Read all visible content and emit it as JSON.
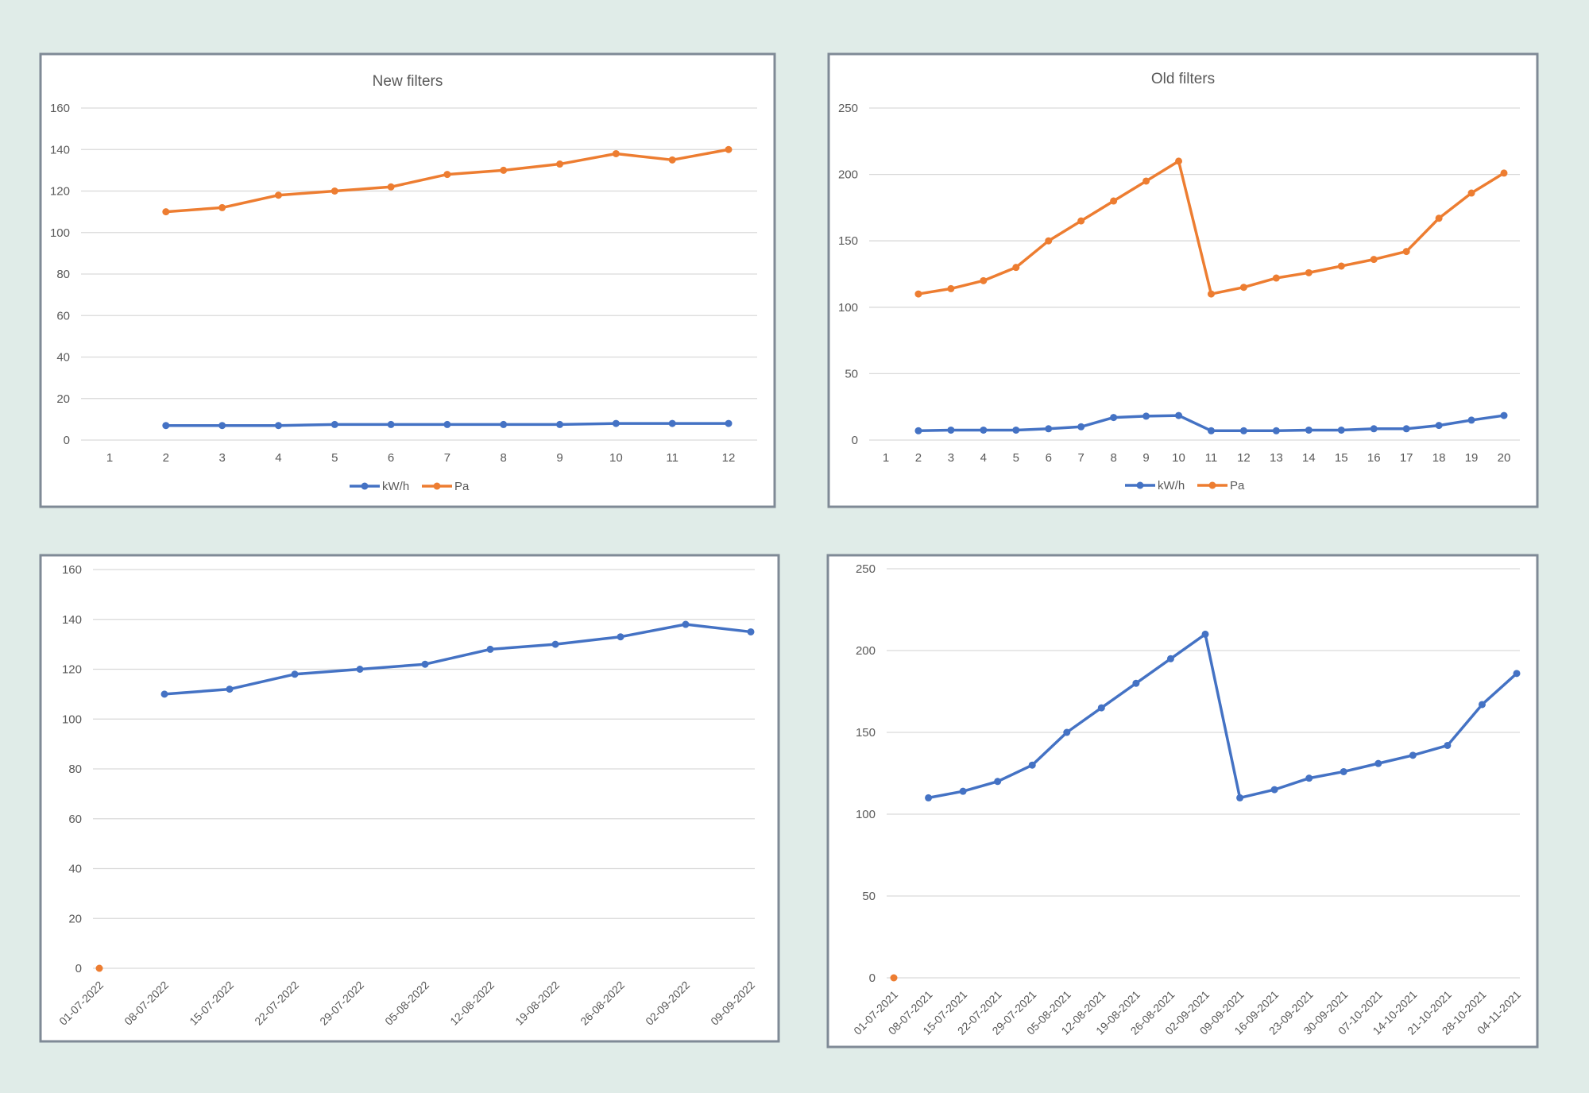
{
  "colors": {
    "kwh": "#4472c4",
    "pa": "#ed7d31",
    "grid": "#d9d9d9",
    "panel_border": "#7f8a96",
    "background": "#e0ece8"
  },
  "chart_data": [
    {
      "type": "line",
      "title": "New filters",
      "categories": [
        "1",
        "2",
        "3",
        "4",
        "5",
        "6",
        "7",
        "8",
        "9",
        "10",
        "11",
        "12"
      ],
      "ylim": [
        0,
        160
      ],
      "yticks": [
        0,
        20,
        40,
        60,
        80,
        100,
        120,
        140,
        160
      ],
      "grid": true,
      "legend": "bottom",
      "series": [
        {
          "name": "kW/h",
          "color": "#4472c4",
          "values": [
            null,
            7,
            7,
            7,
            7.5,
            7.5,
            7.5,
            7.5,
            7.5,
            8,
            8,
            8
          ]
        },
        {
          "name": "Pa",
          "color": "#ed7d31",
          "values": [
            null,
            110,
            112,
            118,
            120,
            122,
            128,
            130,
            133,
            138,
            135,
            140
          ]
        }
      ]
    },
    {
      "type": "line",
      "title": "Old filters",
      "categories": [
        "1",
        "2",
        "3",
        "4",
        "5",
        "6",
        "7",
        "8",
        "9",
        "10",
        "11",
        "12",
        "13",
        "14",
        "15",
        "16",
        "17",
        "18",
        "19",
        "20"
      ],
      "ylim": [
        0,
        250
      ],
      "yticks": [
        0,
        50,
        100,
        150,
        200,
        250
      ],
      "grid": true,
      "legend": "bottom",
      "series": [
        {
          "name": "kW/h",
          "color": "#4472c4",
          "values": [
            null,
            7,
            7.5,
            7.5,
            7.5,
            8.5,
            10,
            17,
            18,
            18.5,
            7,
            7,
            7,
            7.5,
            7.5,
            8.5,
            8.5,
            11,
            15,
            18.5
          ]
        },
        {
          "name": "Pa",
          "color": "#ed7d31",
          "values": [
            null,
            110,
            114,
            120,
            130,
            150,
            165,
            180,
            195,
            210,
            110,
            115,
            122,
            126,
            131,
            136,
            142,
            167,
            186,
            201
          ]
        }
      ]
    },
    {
      "type": "line",
      "title": "",
      "categories": [
        "01-07-2022",
        "08-07-2022",
        "15-07-2022",
        "22-07-2022",
        "29-07-2022",
        "05-08-2022",
        "12-08-2022",
        "19-08-2022",
        "26-08-2022",
        "02-09-2022",
        "09-09-2022"
      ],
      "ylim": [
        0,
        160
      ],
      "yticks": [
        0,
        20,
        40,
        60,
        80,
        100,
        120,
        140,
        160
      ],
      "grid": true,
      "legend": "none",
      "series": [
        {
          "name": "",
          "color": "#ed7d31",
          "values": [
            0,
            null,
            null,
            null,
            null,
            null,
            null,
            null,
            null,
            null,
            null
          ]
        },
        {
          "name": "",
          "color": "#4472c4",
          "values": [
            null,
            110,
            112,
            118,
            120,
            122,
            128,
            130,
            133,
            138,
            135
          ]
        }
      ]
    },
    {
      "type": "line",
      "title": "",
      "categories": [
        "01-07-2021",
        "08-07-2021",
        "15-07-2021",
        "22-07-2021",
        "29-07-2021",
        "05-08-2021",
        "12-08-2021",
        "19-08-2021",
        "26-08-2021",
        "02-09-2021",
        "09-09-2021",
        "16-09-2021",
        "23-09-2021",
        "30-09-2021",
        "07-10-2021",
        "14-10-2021",
        "21-10-2021",
        "28-10-2021",
        "04-11-2021"
      ],
      "ylim": [
        0,
        250
      ],
      "yticks": [
        0,
        50,
        100,
        150,
        200,
        250
      ],
      "grid": true,
      "legend": "none",
      "series": [
        {
          "name": "",
          "color": "#ed7d31",
          "values": [
            0,
            null,
            null,
            null,
            null,
            null,
            null,
            null,
            null,
            null,
            null,
            null,
            null,
            null,
            null,
            null,
            null,
            null,
            null
          ]
        },
        {
          "name": "",
          "color": "#4472c4",
          "values": [
            null,
            110,
            114,
            120,
            130,
            150,
            165,
            180,
            195,
            210,
            110,
            115,
            122,
            126,
            131,
            136,
            142,
            167,
            186
          ]
        }
      ]
    }
  ]
}
